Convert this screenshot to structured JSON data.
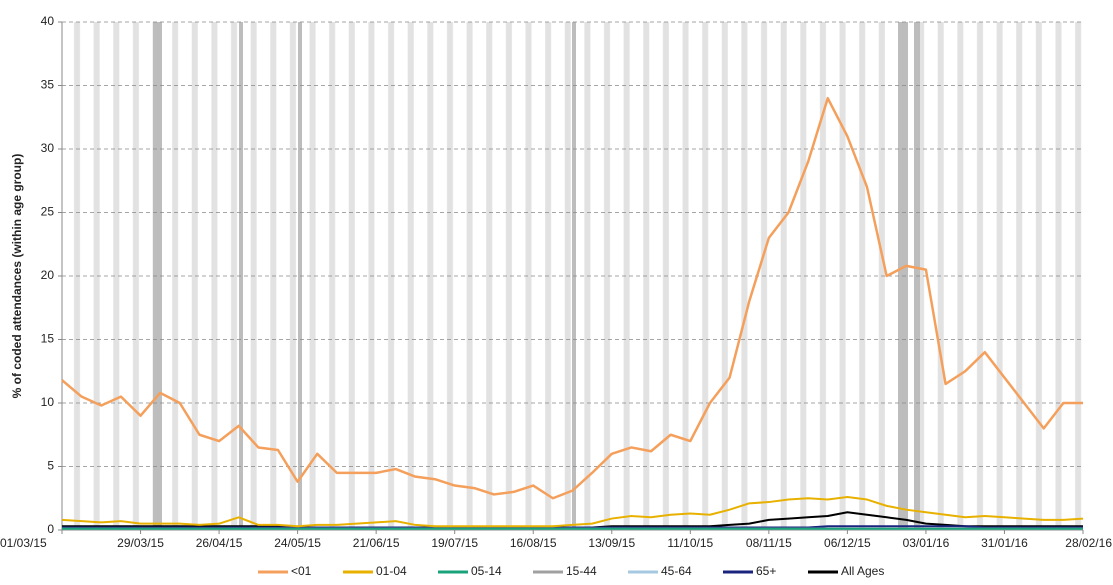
{
  "chart_data": {
    "type": "line",
    "y_label": "% of coded attendances (within age group)",
    "x": [
      "01/03/15",
      "08/03/15",
      "15/03/15",
      "22/03/15",
      "29/03/15",
      "05/04/15",
      "12/04/15",
      "19/04/15",
      "26/04/15",
      "03/05/15",
      "10/05/15",
      "17/05/15",
      "24/05/15",
      "31/05/15",
      "07/06/15",
      "14/06/15",
      "21/06/15",
      "28/06/15",
      "05/07/15",
      "12/07/15",
      "19/07/15",
      "26/07/15",
      "02/08/15",
      "09/08/15",
      "16/08/15",
      "23/08/15",
      "30/08/15",
      "06/09/15",
      "13/09/15",
      "20/09/15",
      "27/09/15",
      "04/10/15",
      "11/10/15",
      "18/10/15",
      "25/10/15",
      "01/11/15",
      "08/11/15",
      "15/11/15",
      "22/11/15",
      "29/11/15",
      "06/12/15",
      "13/12/15",
      "20/12/15",
      "27/12/15",
      "03/01/16",
      "10/01/16",
      "17/01/16",
      "24/01/16",
      "31/01/16",
      "07/02/16",
      "14/02/16",
      "21/02/16",
      "28/02/16"
    ],
    "xlim": [
      "01/03/15",
      "28/02/16"
    ],
    "xticks": [
      "01/03/15",
      "29/03/15",
      "26/04/15",
      "24/05/15",
      "21/06/15",
      "19/07/15",
      "16/08/15",
      "13/09/15",
      "11/10/15",
      "08/11/15",
      "06/12/15",
      "03/01/16",
      "31/01/16",
      "28/02/16"
    ],
    "ylim": [
      0,
      40
    ],
    "yticks": [
      0,
      5,
      10,
      15,
      20,
      25,
      30,
      35,
      40
    ],
    "grid": true,
    "legend": "bottom",
    "series": [
      {
        "name": "<01",
        "color": "#f4a05c",
        "values": [
          11.8,
          10.5,
          9.8,
          10.5,
          9.0,
          10.8,
          10.0,
          7.5,
          7.0,
          8.2,
          6.5,
          6.3,
          3.8,
          6.0,
          4.5,
          4.5,
          4.5,
          4.8,
          4.2,
          4.0,
          3.5,
          3.3,
          2.8,
          3.0,
          3.5,
          2.5,
          3.1,
          4.5,
          6.0,
          6.5,
          6.2,
          7.5,
          7.0,
          10.0,
          12.0,
          18.0,
          23.0,
          25.0,
          29.0,
          34.0,
          31.0,
          27.0,
          20.0,
          20.8,
          20.5,
          11.5,
          12.5,
          14.0,
          12.0,
          10.0,
          8.0,
          10.0,
          10.0
        ]
      },
      {
        "name": "01-04",
        "color": "#e8b100",
        "values": [
          0.8,
          0.7,
          0.6,
          0.7,
          0.5,
          0.5,
          0.5,
          0.4,
          0.5,
          1.0,
          0.4,
          0.4,
          0.3,
          0.4,
          0.4,
          0.5,
          0.6,
          0.7,
          0.4,
          0.3,
          0.3,
          0.3,
          0.3,
          0.3,
          0.3,
          0.3,
          0.4,
          0.5,
          0.9,
          1.1,
          1.0,
          1.2,
          1.3,
          1.2,
          1.6,
          2.1,
          2.2,
          2.4,
          2.5,
          2.4,
          2.6,
          2.4,
          1.9,
          1.6,
          1.4,
          1.2,
          1.0,
          1.1,
          1.0,
          0.9,
          0.8,
          0.8,
          0.9
        ]
      },
      {
        "name": "05-14",
        "color": "#1aa37a",
        "values": [
          0.1,
          0.1,
          0.1,
          0.1,
          0.1,
          0.1,
          0.1,
          0.1,
          0.1,
          0.1,
          0.1,
          0.1,
          0.1,
          0.1,
          0.1,
          0.1,
          0.1,
          0.1,
          0.1,
          0.1,
          0.1,
          0.1,
          0.1,
          0.1,
          0.1,
          0.1,
          0.1,
          0.1,
          0.1,
          0.1,
          0.1,
          0.1,
          0.1,
          0.1,
          0.1,
          0.1,
          0.1,
          0.1,
          0.1,
          0.1,
          0.1,
          0.1,
          0.1,
          0.1,
          0.1,
          0.1,
          0.1,
          0.1,
          0.1,
          0.1,
          0.1,
          0.1,
          0.1
        ]
      },
      {
        "name": "15-44",
        "color": "#a0a0a0",
        "values": [
          0.1,
          0.1,
          0.1,
          0.1,
          0.1,
          0.1,
          0.1,
          0.1,
          0.1,
          0.1,
          0.1,
          0.1,
          0.1,
          0.1,
          0.1,
          0.1,
          0.1,
          0.1,
          0.1,
          0.1,
          0.1,
          0.1,
          0.1,
          0.1,
          0.1,
          0.1,
          0.1,
          0.1,
          0.1,
          0.1,
          0.1,
          0.1,
          0.1,
          0.1,
          0.1,
          0.1,
          0.1,
          0.1,
          0.1,
          0.1,
          0.1,
          0.1,
          0.1,
          0.1,
          0.1,
          0.1,
          0.1,
          0.1,
          0.1,
          0.1,
          0.1,
          0.1,
          0.1
        ]
      },
      {
        "name": "45-64",
        "color": "#a6c8e0",
        "values": [
          0.1,
          0.1,
          0.1,
          0.1,
          0.1,
          0.1,
          0.1,
          0.1,
          0.1,
          0.1,
          0.1,
          0.1,
          0.1,
          0.1,
          0.1,
          0.1,
          0.1,
          0.1,
          0.1,
          0.1,
          0.1,
          0.1,
          0.1,
          0.1,
          0.1,
          0.1,
          0.1,
          0.1,
          0.1,
          0.1,
          0.1,
          0.1,
          0.1,
          0.1,
          0.1,
          0.1,
          0.1,
          0.1,
          0.1,
          0.1,
          0.1,
          0.1,
          0.1,
          0.1,
          0.1,
          0.1,
          0.1,
          0.1,
          0.1,
          0.1,
          0.1,
          0.1,
          0.1
        ]
      },
      {
        "name": "65+",
        "color": "#1a237e",
        "values": [
          0.2,
          0.2,
          0.2,
          0.2,
          0.2,
          0.2,
          0.2,
          0.2,
          0.2,
          0.2,
          0.2,
          0.2,
          0.2,
          0.2,
          0.2,
          0.2,
          0.2,
          0.2,
          0.2,
          0.2,
          0.2,
          0.2,
          0.2,
          0.2,
          0.2,
          0.2,
          0.2,
          0.2,
          0.2,
          0.2,
          0.2,
          0.2,
          0.2,
          0.2,
          0.2,
          0.2,
          0.2,
          0.2,
          0.2,
          0.3,
          0.3,
          0.3,
          0.3,
          0.3,
          0.3,
          0.3,
          0.3,
          0.2,
          0.2,
          0.2,
          0.2,
          0.2,
          0.2
        ]
      },
      {
        "name": "All Ages",
        "color": "#000000",
        "values": [
          0.3,
          0.3,
          0.3,
          0.3,
          0.3,
          0.3,
          0.3,
          0.3,
          0.3,
          0.3,
          0.3,
          0.3,
          0.2,
          0.2,
          0.2,
          0.2,
          0.2,
          0.2,
          0.2,
          0.2,
          0.2,
          0.2,
          0.2,
          0.2,
          0.2,
          0.2,
          0.2,
          0.2,
          0.3,
          0.3,
          0.3,
          0.3,
          0.3,
          0.3,
          0.4,
          0.5,
          0.8,
          0.9,
          1.0,
          1.1,
          1.4,
          1.2,
          1.0,
          0.8,
          0.5,
          0.4,
          0.3,
          0.3,
          0.3,
          0.3,
          0.3,
          0.3,
          0.3
        ]
      }
    ]
  }
}
